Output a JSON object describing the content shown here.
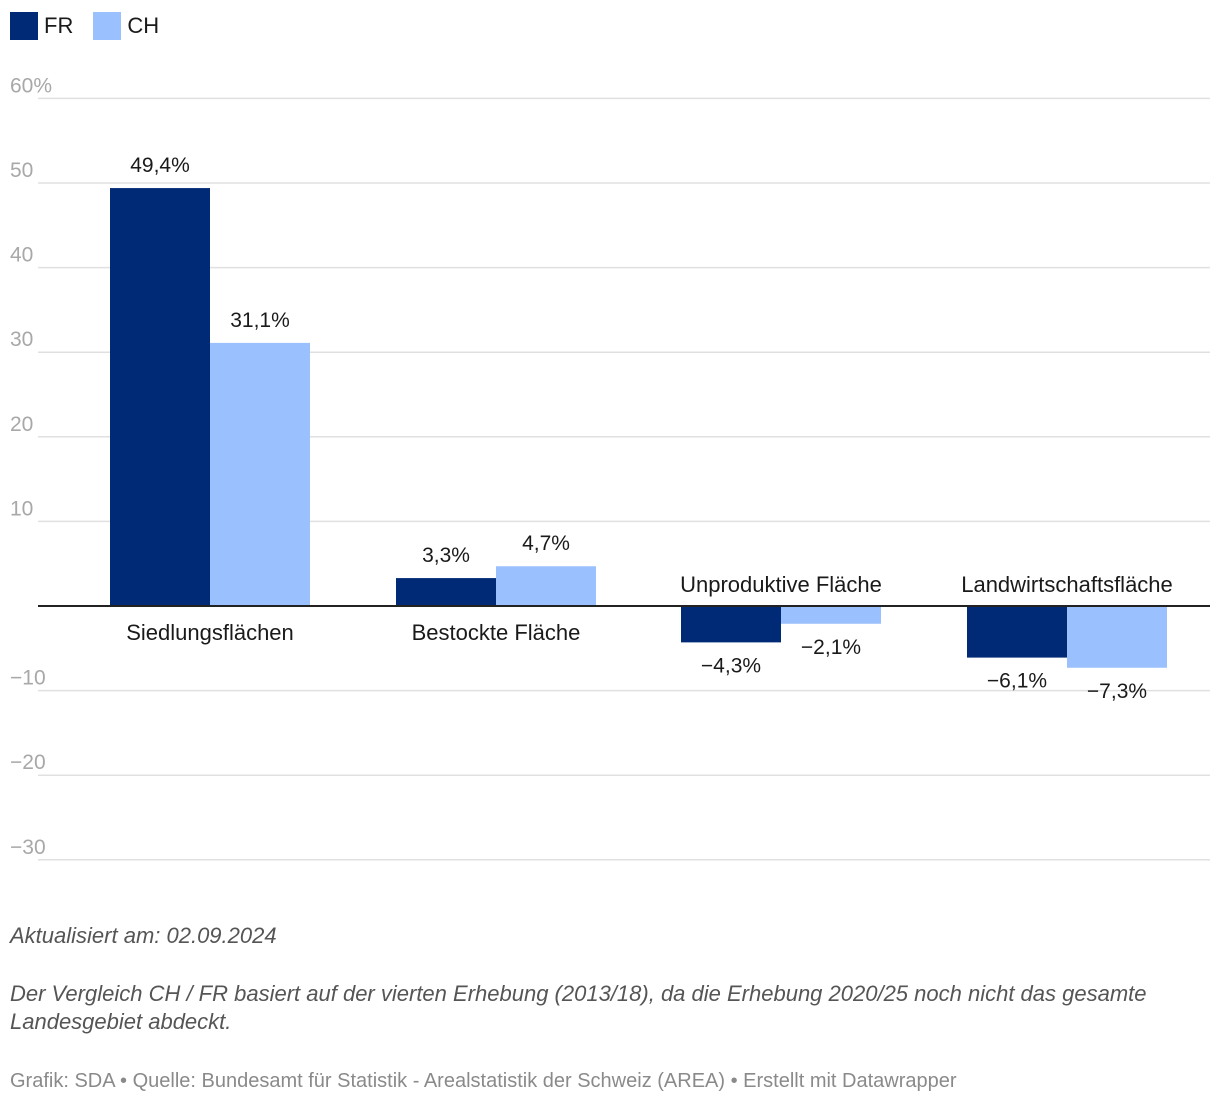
{
  "colors": {
    "fr": "#002a76",
    "ch": "#9ac0fe",
    "grid": "#e0e0e0",
    "axis": "#222222",
    "tick": "#a8a8a8"
  },
  "legend": [
    {
      "label": "FR",
      "color": "#002a76"
    },
    {
      "label": "CH",
      "color": "#9ac0fe"
    }
  ],
  "chart_data": {
    "type": "bar",
    "categories": [
      "Siedlungsflächen",
      "Bestockte Fläche",
      "Unproduktive Fläche",
      "Landwirtschaftsfläche"
    ],
    "series": [
      {
        "name": "FR",
        "values": [
          49.4,
          3.3,
          -4.3,
          -6.1
        ],
        "labels": [
          "49,4%",
          "3,3%",
          "−4,3%",
          "−6,1%"
        ]
      },
      {
        "name": "CH",
        "values": [
          31.1,
          4.7,
          -2.1,
          -7.3
        ],
        "labels": [
          "31,1%",
          "4,7%",
          "−2,1%",
          "−7,3%"
        ]
      }
    ],
    "yticks": [
      60,
      50,
      40,
      30,
      20,
      10,
      -10,
      -20,
      -30
    ],
    "ytick_labels": [
      "60%",
      "50",
      "40",
      "30",
      "20",
      "10",
      "−10",
      "−20",
      "−30"
    ],
    "ylim": [
      -30,
      60
    ],
    "grid": true,
    "legend_position": "top-left"
  },
  "notes": {
    "updated": "Aktualisiert am: 02.09.2024",
    "text": "Der Vergleich CH / FR basiert auf der vierten Erhebung (2013/18), da die Erhebung 2020/25 noch nicht das gesamte Landesgebiet abdeckt."
  },
  "footer": "Grafik: SDA • Quelle: Bundesamt für Statistik - Arealstatistik der Schweiz (AREA) • Erstellt mit Datawrapper"
}
